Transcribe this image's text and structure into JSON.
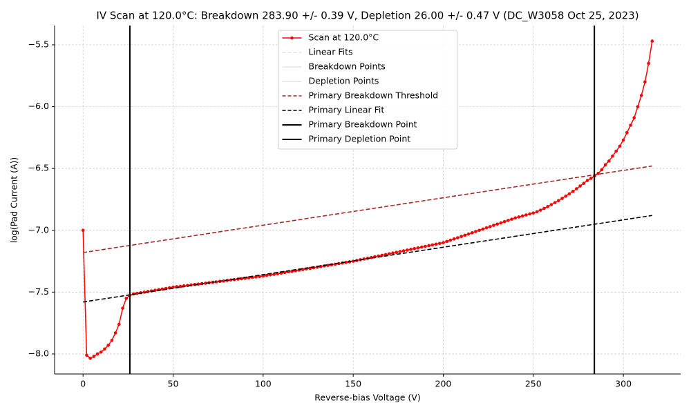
{
  "chart_data": {
    "type": "line",
    "title": "IV Scan at 120.0°C: Breakdown 283.90 +/- 0.39 V, Depletion 26.00 +/- 0.47 V (DC_W3058 Oct 25, 2023)",
    "x_label": "Reverse-bias Voltage (V)",
    "y_label": "log(Pad Current (A))",
    "xlim": [
      -15.8,
      331.8
    ],
    "ylim": [
      -8.162,
      -5.344
    ],
    "xticks": [
      0,
      50,
      100,
      150,
      200,
      250,
      300
    ],
    "yticks": [
      {
        "value": -8.0,
        "label": "−8.0"
      },
      {
        "value": -7.5,
        "label": "−7.5"
      },
      {
        "value": -7.0,
        "label": "−7.0"
      },
      {
        "value": -6.5,
        "label": "−6.5"
      },
      {
        "value": -6.0,
        "label": "−6.0"
      },
      {
        "value": -5.5,
        "label": "−5.5"
      }
    ],
    "grid": true,
    "legend": "upper center",
    "series": [
      {
        "name": "Scan at 120.0°C",
        "color": "#ff0000",
        "style": "solid",
        "marker": true,
        "kind": "line",
        "x": [
          0,
          2,
          4,
          6,
          8,
          10,
          12,
          14,
          16,
          18,
          20,
          22,
          24,
          26,
          28,
          30,
          32,
          34,
          36,
          38,
          40,
          42,
          44,
          46,
          48,
          50,
          52,
          54,
          56,
          58,
          60,
          62,
          64,
          66,
          68,
          70,
          72,
          74,
          76,
          78,
          80,
          82,
          84,
          86,
          88,
          90,
          92,
          94,
          96,
          98,
          100,
          102,
          104,
          106,
          108,
          110,
          112,
          114,
          116,
          118,
          120,
          122,
          124,
          126,
          128,
          130,
          132,
          134,
          136,
          138,
          140,
          142,
          144,
          146,
          148,
          150,
          152,
          154,
          156,
          158,
          160,
          162,
          164,
          166,
          168,
          170,
          172,
          174,
          176,
          178,
          180,
          182,
          184,
          186,
          188,
          190,
          192,
          194,
          196,
          198,
          200,
          202,
          204,
          206,
          208,
          210,
          212,
          214,
          216,
          218,
          220,
          222,
          224,
          226,
          228,
          230,
          232,
          234,
          236,
          238,
          240,
          242,
          244,
          246,
          248,
          250,
          252,
          254,
          256,
          258,
          260,
          262,
          264,
          266,
          268,
          270,
          272,
          274,
          276,
          278,
          280,
          282,
          284,
          286,
          288,
          290,
          292,
          294,
          296,
          298,
          300,
          302,
          304,
          306,
          308,
          310,
          312,
          314,
          316
        ],
        "values": [
          -7.0,
          -8.01,
          -8.035,
          -8.02,
          -8.0,
          -7.985,
          -7.96,
          -7.93,
          -7.89,
          -7.83,
          -7.76,
          -7.63,
          -7.55,
          -7.525,
          -7.515,
          -7.51,
          -7.505,
          -7.5,
          -7.495,
          -7.49,
          -7.485,
          -7.48,
          -7.475,
          -7.47,
          -7.465,
          -7.46,
          -7.456,
          -7.453,
          -7.449,
          -7.446,
          -7.442,
          -7.438,
          -7.435,
          -7.431,
          -7.428,
          -7.424,
          -7.42,
          -7.417,
          -7.413,
          -7.41,
          -7.406,
          -7.402,
          -7.399,
          -7.395,
          -7.392,
          -7.388,
          -7.384,
          -7.381,
          -7.377,
          -7.374,
          -7.37,
          -7.365,
          -7.36,
          -7.356,
          -7.351,
          -7.346,
          -7.341,
          -7.336,
          -7.332,
          -7.327,
          -7.322,
          -7.317,
          -7.312,
          -7.308,
          -7.303,
          -7.298,
          -7.293,
          -7.288,
          -7.284,
          -7.279,
          -7.274,
          -7.269,
          -7.264,
          -7.26,
          -7.255,
          -7.25,
          -7.244,
          -7.238,
          -7.232,
          -7.226,
          -7.22,
          -7.214,
          -7.208,
          -7.202,
          -7.196,
          -7.19,
          -7.184,
          -7.178,
          -7.172,
          -7.166,
          -7.16,
          -7.154,
          -7.148,
          -7.142,
          -7.136,
          -7.13,
          -7.124,
          -7.118,
          -7.112,
          -7.106,
          -7.1,
          -7.09,
          -7.08,
          -7.07,
          -7.06,
          -7.05,
          -7.04,
          -7.03,
          -7.02,
          -7.01,
          -7.0,
          -6.99,
          -6.98,
          -6.97,
          -6.96,
          -6.95,
          -6.94,
          -6.93,
          -6.92,
          -6.91,
          -6.9,
          -6.892,
          -6.884,
          -6.876,
          -6.868,
          -6.86,
          -6.85,
          -6.837,
          -6.823,
          -6.808,
          -6.792,
          -6.776,
          -6.76,
          -6.742,
          -6.724,
          -6.705,
          -6.685,
          -6.664,
          -6.642,
          -6.62,
          -6.597,
          -6.58,
          -6.56,
          -6.54,
          -6.51,
          -6.47,
          -6.44,
          -6.4,
          -6.36,
          -6.32,
          -6.27,
          -6.21,
          -6.15,
          -6.09,
          -6.0,
          -5.91,
          -5.8,
          -5.65,
          -5.47
        ]
      },
      {
        "name": "Linear Fits",
        "color": "#e4e4e4",
        "style": "dashed",
        "marker": false,
        "kind": "line",
        "x": [],
        "values": []
      },
      {
        "name": "Breakdown Points",
        "color": "#e4e4e4",
        "style": "solid",
        "marker": false,
        "kind": "line",
        "x": [],
        "values": []
      },
      {
        "name": "Depletion Points",
        "color": "#e4e4e4",
        "style": "solid",
        "marker": false,
        "kind": "line",
        "x": [],
        "values": []
      },
      {
        "name": "Primary Breakdown Threshold",
        "color": "#a52a2a",
        "style": "dashed",
        "marker": false,
        "kind": "line",
        "x": [
          0,
          316
        ],
        "values": [
          -7.18,
          -6.48
        ]
      },
      {
        "name": "Primary Linear Fit",
        "color": "#000000",
        "style": "dashed",
        "marker": false,
        "kind": "line",
        "x": [
          0,
          316
        ],
        "values": [
          -7.58,
          -6.88
        ]
      },
      {
        "name": "Primary Breakdown Point",
        "color": "#000000",
        "style": "solid",
        "marker": false,
        "kind": "vline",
        "x": [
          283.9
        ]
      },
      {
        "name": "Primary Depletion Point",
        "color": "#000000",
        "style": "solid",
        "marker": false,
        "kind": "vline",
        "x": [
          26.0
        ]
      }
    ]
  }
}
